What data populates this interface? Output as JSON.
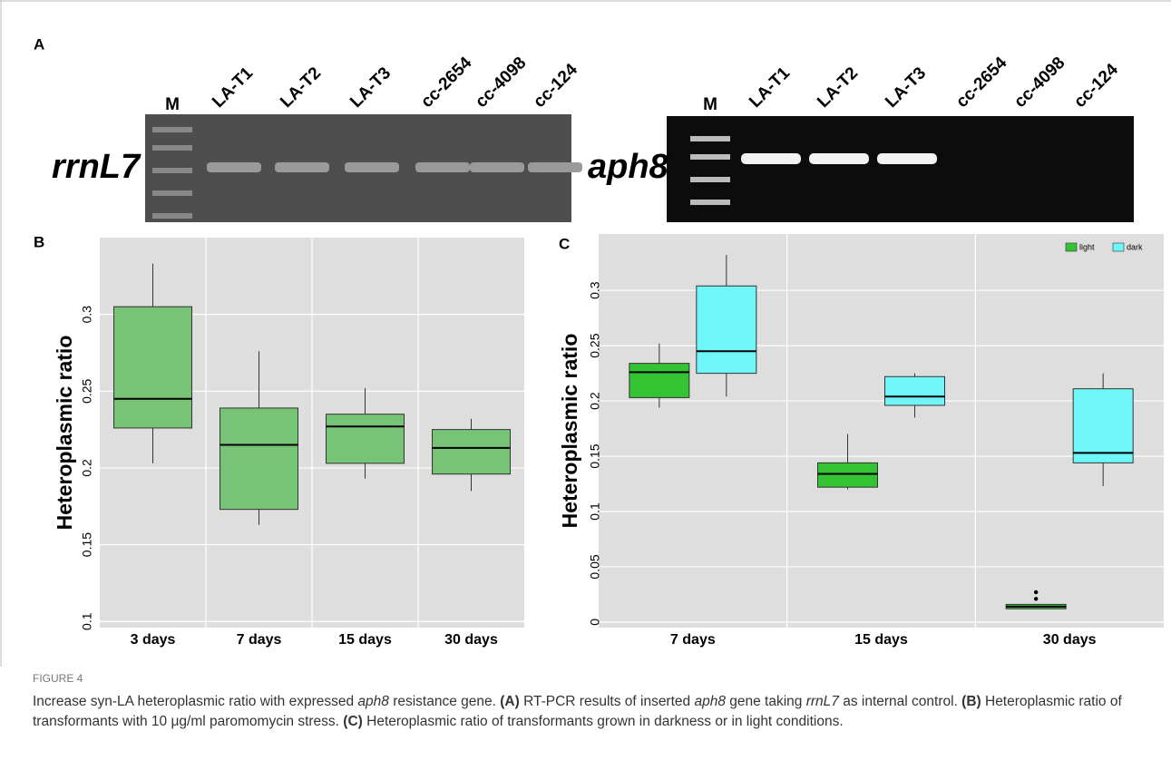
{
  "panel_a": {
    "label": "A",
    "gel_left": {
      "gene": "rrnL7",
      "lanes": [
        "M",
        "LA-T1",
        "LA-T2",
        "LA-T3",
        "cc-2654",
        "cc-4098",
        "cc-124"
      ]
    },
    "gel_right": {
      "gene": "aph8",
      "lanes": [
        "M",
        "LA-T1",
        "LA-T2",
        "LA-T3",
        "cc-2654",
        "cc-4098",
        "cc-124"
      ]
    }
  },
  "chart_data": [
    {
      "type": "box",
      "panel": "B",
      "y_label": "Heteroplasmic ratio",
      "categories": [
        "3 days",
        "7 days",
        "15 days",
        "30 days"
      ],
      "series": [
        {
          "color": "#77c477",
          "min": [
            0.203,
            0.163,
            0.193,
            0.185
          ],
          "q1": [
            0.226,
            0.173,
            0.203,
            0.196
          ],
          "median": [
            0.245,
            0.215,
            0.227,
            0.213
          ],
          "q3": [
            0.305,
            0.239,
            0.235,
            0.225
          ],
          "max": [
            0.333,
            0.276,
            0.252,
            0.232
          ]
        }
      ],
      "ylim": [
        0.096,
        0.35
      ],
      "yticks": [
        0.1,
        0.15,
        0.2,
        0.25,
        0.3
      ],
      "grid": true
    },
    {
      "type": "box",
      "panel": "C",
      "y_label": "Heteroplasmic ratio",
      "categories": [
        "7 days",
        "15 days",
        "30 days"
      ],
      "series": [
        {
          "name": "light",
          "color": "#33c333",
          "min": [
            0.194,
            0.12,
            0.012
          ],
          "q1": [
            0.203,
            0.122,
            0.012
          ],
          "median": [
            0.226,
            0.134,
            0.014
          ],
          "q3": [
            0.234,
            0.144,
            0.016
          ],
          "max": [
            0.252,
            0.17,
            0.016
          ],
          "outliers": [
            [],
            [],
            [
              0.027,
              0.021
            ]
          ]
        },
        {
          "name": "dark",
          "color": "#6ff6f8",
          "min": [
            0.204,
            0.185,
            0.123
          ],
          "q1": [
            0.225,
            0.196,
            0.144
          ],
          "median": [
            0.245,
            0.204,
            0.153
          ],
          "q3": [
            0.304,
            0.222,
            0.211
          ],
          "max": [
            0.332,
            0.225,
            0.225
          ],
          "outliers": [
            [],
            [],
            []
          ]
        }
      ],
      "ylim": [
        -0.005,
        0.351
      ],
      "yticks": [
        0,
        0.05,
        0.1,
        0.15,
        0.2,
        0.25,
        0.3
      ],
      "grid": true,
      "legend": "top-right"
    }
  ],
  "caption": {
    "figure_label": "FIGURE 4",
    "parts": [
      "Increase syn-LA heteroplasmic ratio with expressed ",
      "aph8",
      " resistance gene. ",
      "(A)",
      " RT-PCR results of inserted ",
      "aph8",
      " gene taking ",
      "rrnL7",
      " as internal control. ",
      "(B)",
      " Heteroplasmic ratio of transformants with 10 μg/ml paromomycin stress. ",
      "(C)",
      " Heteroplasmic ratio of transformants grown in darkness or in light conditions."
    ]
  }
}
